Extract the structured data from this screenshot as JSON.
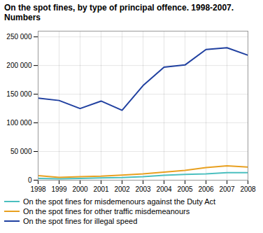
{
  "chart_data": {
    "type": "line",
    "title": "On the spot fines, by type of principal offence. 1998-2007.",
    "subtitle": "Numbers",
    "x": [
      1998,
      1999,
      2000,
      2001,
      2002,
      2003,
      2004,
      2005,
      2006,
      2007,
      2008
    ],
    "series": [
      {
        "name": "On the spot fines for misdemenours against the Duty Act",
        "color": "#4bbfbf",
        "values": [
          3000,
          2500,
          3000,
          4000,
          4500,
          6000,
          8500,
          10000,
          11000,
          13000,
          13000
        ]
      },
      {
        "name": "On the spot fines for other traffic misdemeanours",
        "color": "#e8a020",
        "values": [
          8000,
          5000,
          6000,
          7000,
          9000,
          11000,
          14000,
          17000,
          22000,
          25000,
          23000
        ]
      },
      {
        "name": "On the spot fines for illegal speed",
        "color": "#2040a0",
        "values": [
          143000,
          139000,
          125000,
          138000,
          122000,
          165000,
          197000,
          201000,
          228000,
          231000,
          218000
        ]
      }
    ],
    "xlim": [
      1998,
      2008
    ],
    "xticks": [
      1998,
      1999,
      2000,
      2001,
      2002,
      2003,
      2004,
      2005,
      2006,
      2007,
      2008
    ],
    "ylim": [
      0,
      260000
    ],
    "yticks": [
      0,
      {
        "value": 50000,
        "label": "50 000"
      },
      {
        "value": 100000,
        "label": "100 000"
      },
      {
        "value": 150000,
        "label": "150 000"
      },
      {
        "value": 200000,
        "label": "200 000"
      },
      {
        "value": 250000,
        "label": "250 000"
      }
    ],
    "grid": true,
    "legend": "bottom"
  }
}
